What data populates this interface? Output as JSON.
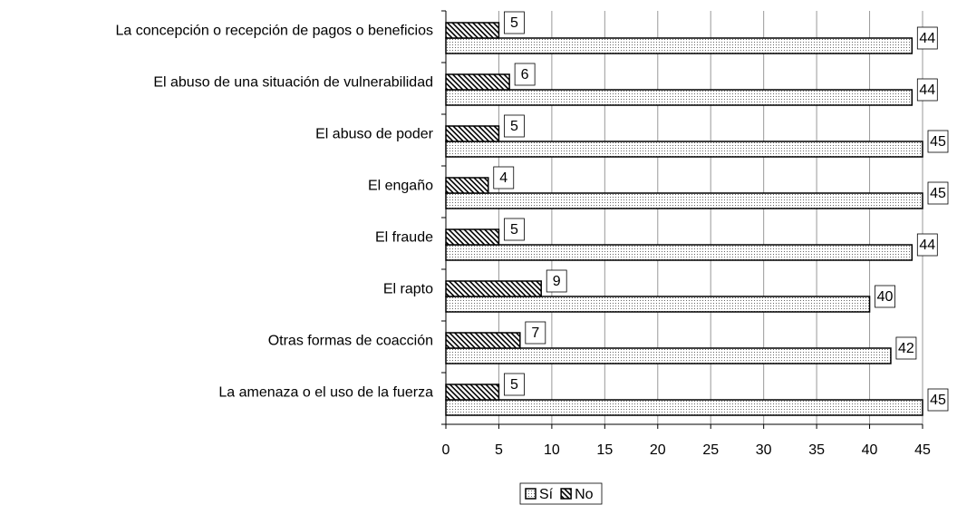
{
  "chart_data": {
    "type": "bar",
    "orientation": "horizontal",
    "categories": [
      "La concepción o recepción de pagos o beneficios",
      "El abuso de una situación de vulnerabilidad",
      "El abuso de poder",
      "El engaño",
      "El fraude",
      "El rapto",
      "Otras formas de coacción",
      "La amenaza o el uso de la fuerza"
    ],
    "series": [
      {
        "name": "Sí",
        "pattern": "dotted",
        "values": [
          44,
          44,
          45,
          45,
          44,
          40,
          42,
          45
        ]
      },
      {
        "name": "No",
        "pattern": "hatched",
        "values": [
          5,
          6,
          5,
          4,
          5,
          9,
          7,
          5
        ]
      }
    ],
    "xlim": [
      0,
      45
    ],
    "xticks": [
      0,
      5,
      10,
      15,
      20,
      25,
      30,
      35,
      40,
      45
    ],
    "grid": true,
    "legend": "bottom"
  }
}
